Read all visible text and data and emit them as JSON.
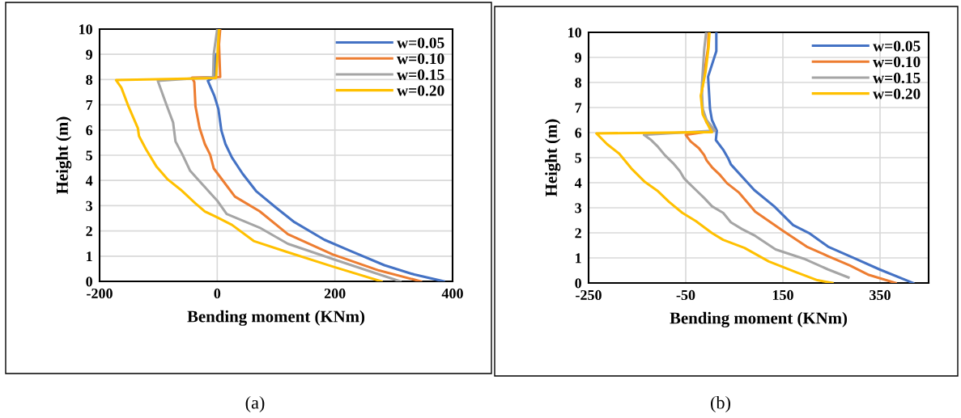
{
  "chart_data": [
    {
      "type": "line",
      "xlabel": "Bending moment (KNm)",
      "ylabel": "Height (m)",
      "annotations": [
        "(a)"
      ],
      "xlim": [
        -200,
        400
      ],
      "xticks": [
        -200,
        0,
        200,
        400
      ],
      "ylim": [
        0,
        10
      ],
      "yticks": [
        0,
        1,
        2,
        3,
        4,
        5,
        6,
        7,
        8,
        9,
        10
      ],
      "grid": true,
      "legend": "top right",
      "marker": "none",
      "line_style": "solid",
      "series": [
        {
          "name": "w=0.05",
          "color": "#4472c4",
          "x": [
            -2,
            -5,
            -16,
            -5,
            2,
            7,
            14,
            25,
            43,
            66,
            99,
            131,
            182,
            224,
            284,
            335,
            385
          ],
          "values": [
            9,
            8.1,
            7.95,
            7.36,
            6.83,
            5.98,
            5.44,
            4.91,
            4.27,
            3.58,
            2.94,
            2.35,
            1.65,
            1.23,
            0.64,
            0.27,
            0
          ]
        },
        {
          "name": "w=0.10",
          "color": "#ed7d31",
          "x": [
            5,
            3,
            5,
            -43,
            -39,
            -37,
            -30,
            -21,
            -12,
            -6,
            11,
            30,
            72,
            120,
            196,
            275,
            346
          ],
          "values": [
            10,
            9.4,
            8.1,
            8.08,
            7.9,
            6.94,
            6.08,
            5.44,
            5.02,
            4.48,
            3.95,
            3.36,
            2.78,
            1.87,
            1.07,
            0.43,
            0
          ]
        },
        {
          "name": "w=0.15",
          "color": "#a5a5a5",
          "x": [
            0,
            -6,
            -7,
            -101,
            -87,
            -75,
            -71,
            -59,
            -46,
            -25,
            0,
            16,
            72,
            120,
            201,
            311
          ],
          "values": [
            10,
            9,
            8.1,
            7.95,
            7.04,
            6.3,
            5.55,
            5.02,
            4.38,
            3.84,
            3.2,
            2.67,
            2.13,
            1.49,
            0.85,
            0
          ]
        },
        {
          "name": "w=0.20",
          "color": "#ffc000",
          "x": [
            3,
            -2,
            -172,
            -163,
            -151,
            -135,
            -133,
            -121,
            -103,
            -85,
            -62,
            -37,
            -21,
            -2,
            25,
            62,
            118,
            196,
            279
          ],
          "values": [
            10,
            8.06,
            7.98,
            7.68,
            6.94,
            6.08,
            5.76,
            5.23,
            4.54,
            4.06,
            3.63,
            3.09,
            2.77,
            2.56,
            2.24,
            1.6,
            1.17,
            0.59,
            0
          ]
        }
      ]
    },
    {
      "type": "line",
      "xlabel": "Bending moment (KNm)",
      "ylabel": "Height (m)",
      "annotations": [
        "(b)"
      ],
      "xlim": [
        -250,
        450
      ],
      "xticks": [
        -250,
        -50,
        150,
        350
      ],
      "ylim": [
        0,
        10
      ],
      "yticks": [
        0,
        1,
        2,
        3,
        4,
        5,
        6,
        7,
        8,
        9,
        10
      ],
      "grid": true,
      "legend": "top right",
      "marker": "none",
      "line_style": "solid",
      "series": [
        {
          "name": "w=0.05",
          "color": "#4472c4",
          "x": [
            13,
            13,
            -4,
            0,
            4,
            14,
            12,
            27,
            38,
            43,
            91,
            132,
            171,
            204,
            243,
            299,
            349,
            418
          ],
          "values": [
            10,
            9.25,
            8.23,
            6.94,
            6.5,
            6.08,
            5.7,
            5.32,
            4.95,
            4.73,
            3.71,
            3.06,
            2.31,
            1.99,
            1.45,
            0.97,
            0.54,
            0
          ]
        },
        {
          "name": "w=0.10",
          "color": "#ed7d31",
          "x": [
            -3,
            -4,
            -12,
            -18,
            -15,
            -7,
            10,
            -50,
            -40,
            -23,
            -12,
            -7,
            4,
            21,
            35,
            60,
            93,
            149,
            199,
            243,
            288,
            327,
            382
          ],
          "values": [
            10,
            9.4,
            8.33,
            7.47,
            6.83,
            6.4,
            6.08,
            5.91,
            5.65,
            5.38,
            5.1,
            4.89,
            4.62,
            4.3,
            3.98,
            3.6,
            2.85,
            2.1,
            1.45,
            1.07,
            0.7,
            0.32,
            0
          ]
        },
        {
          "name": "w=0.15",
          "color": "#a5a5a5",
          "x": [
            -8,
            -12,
            -17,
            -15,
            -7,
            10,
            -136,
            -121,
            -107,
            -93,
            -76,
            -62,
            -54,
            -46,
            -29,
            -12,
            4,
            27,
            43,
            66,
            93,
            135,
            193,
            243,
            285
          ],
          "values": [
            10,
            9.3,
            7.8,
            6.94,
            6.5,
            6.08,
            5.91,
            5.7,
            5.43,
            5.1,
            4.78,
            4.46,
            4.19,
            4.03,
            3.71,
            3.39,
            3.06,
            2.8,
            2.42,
            2.15,
            1.88,
            1.34,
            0.97,
            0.54,
            0.22
          ]
        },
        {
          "name": "w=0.20",
          "color": "#ffc000",
          "x": [
            -1,
            -3,
            -9,
            -19,
            -15,
            -1,
            4,
            -234,
            -212,
            -187,
            -162,
            -134,
            -107,
            -84,
            -57,
            -29,
            4,
            27,
            71,
            121,
            177,
            221,
            252
          ],
          "values": [
            10,
            9.4,
            8.44,
            7.47,
            6.72,
            6.18,
            6.02,
            5.97,
            5.54,
            5.16,
            4.57,
            4.03,
            3.66,
            3.23,
            2.8,
            2.47,
            1.99,
            1.72,
            1.4,
            0.86,
            0.43,
            0.11,
            0
          ]
        }
      ]
    }
  ]
}
